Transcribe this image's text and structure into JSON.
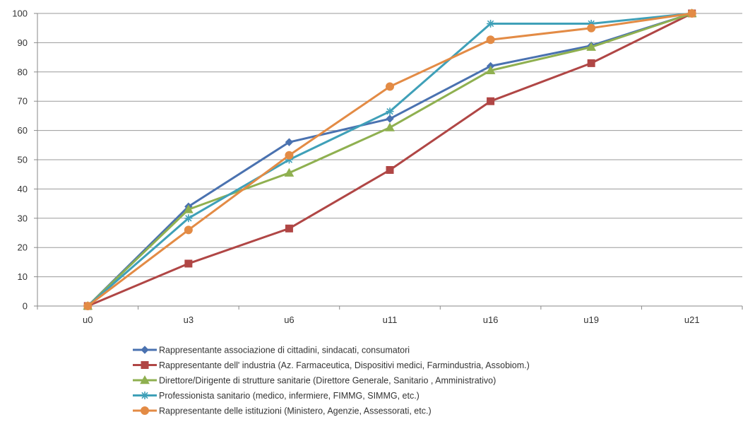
{
  "chart_data": {
    "type": "line",
    "title": "",
    "xlabel": "",
    "ylabel": "",
    "categories": [
      "u0",
      "u3",
      "u6",
      "u11",
      "u16",
      "u19",
      "u21"
    ],
    "ylim": [
      0,
      100
    ],
    "yticks": [
      0,
      10,
      20,
      30,
      40,
      50,
      60,
      70,
      80,
      90,
      100
    ],
    "grid": true,
    "legend_position": "bottom",
    "series": [
      {
        "name": "Rappresentante associazione di cittadini, sindacati, consumatori",
        "color": "#4a72b0",
        "marker": "diamond",
        "values": [
          0,
          34,
          56,
          64,
          82,
          89,
          100
        ]
      },
      {
        "name": "Rappresentante dell' industria (Az. Farmaceutica, Dispositivi medici, Farmindustria, Assobiom.)",
        "color": "#b04645",
        "marker": "square",
        "values": [
          0,
          14.5,
          26.5,
          46.5,
          70,
          83,
          100
        ]
      },
      {
        "name": "Direttore/Dirigente di strutture sanitarie (Direttore Generale, Sanitario , Amministrativo)",
        "color": "#8fb050",
        "marker": "triangle",
        "values": [
          0,
          33,
          45.5,
          61,
          80.5,
          88.5,
          100
        ]
      },
      {
        "name": "Professionista sanitario (medico, infermiere, FIMMG, SIMMG, etc.)",
        "color": "#3fa0b8",
        "marker": "star",
        "values": [
          0,
          30,
          50,
          66.5,
          96.5,
          96.5,
          100
        ]
      },
      {
        "name": "Rappresentante delle istituzioni (Ministero, Agenzie, Assessorati, etc.)",
        "color": "#e38b45",
        "marker": "circle",
        "values": [
          0,
          26,
          51.5,
          75,
          91,
          95,
          100
        ]
      }
    ]
  }
}
